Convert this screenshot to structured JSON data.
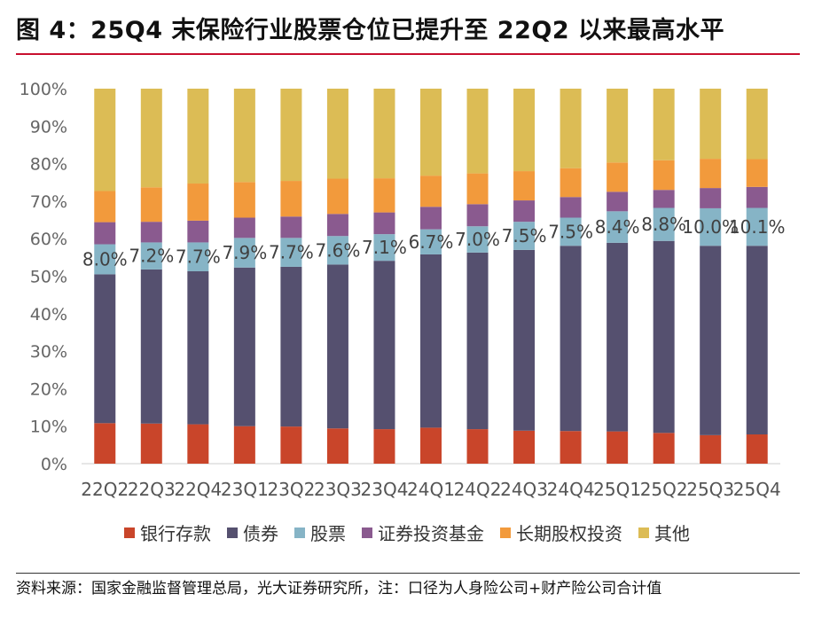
{
  "title": "图 4：25Q4 末保险行业股票仓位已提升至 22Q2 以来最高水平",
  "source": "资料来源：国家金融监督管理总局，光大证券研究所，注：口径为人身险公司+财产险公司合计值",
  "chart_data": {
    "type": "stacked-bar-percent",
    "categories": [
      "22Q2",
      "22Q3",
      "22Q4",
      "23Q1",
      "23Q2",
      "23Q3",
      "23Q4",
      "24Q1",
      "24Q2",
      "24Q3",
      "24Q4",
      "25Q1",
      "25Q2",
      "25Q3",
      "25Q4"
    ],
    "ylim": [
      0,
      100
    ],
    "yticks": [
      "0%",
      "10%",
      "20%",
      "30%",
      "40%",
      "50%",
      "60%",
      "70%",
      "80%",
      "90%",
      "100%"
    ],
    "series": [
      {
        "name": "银行存款",
        "color": "#c9452a",
        "values": [
          10.8,
          10.7,
          10.5,
          10.0,
          9.9,
          9.4,
          9.2,
          9.6,
          9.2,
          8.8,
          8.7,
          8.6,
          8.2,
          7.6,
          7.8
        ]
      },
      {
        "name": "债券",
        "color": "#55506f",
        "values": [
          39.7,
          41.1,
          40.8,
          42.3,
          42.6,
          43.7,
          44.9,
          46.2,
          47.1,
          48.2,
          49.4,
          50.3,
          51.2,
          50.5,
          50.3
        ]
      },
      {
        "name": "股票",
        "color": "#86b4c6",
        "values": [
          8.0,
          7.2,
          7.7,
          7.9,
          7.7,
          7.6,
          7.1,
          6.7,
          7.0,
          7.5,
          7.5,
          8.4,
          8.8,
          10.0,
          10.1
        ]
      },
      {
        "name": "证券投资基金",
        "color": "#8a5a8f",
        "values": [
          5.9,
          5.5,
          5.8,
          5.4,
          5.7,
          5.9,
          5.8,
          6.0,
          5.9,
          5.7,
          5.5,
          5.2,
          4.8,
          5.4,
          5.6
        ]
      },
      {
        "name": "长期股权投资",
        "color": "#f29a3c",
        "values": [
          8.3,
          9.2,
          9.9,
          9.5,
          9.5,
          9.4,
          9.1,
          8.3,
          8.2,
          7.8,
          7.7,
          7.8,
          7.9,
          7.8,
          7.4
        ]
      },
      {
        "name": "其他",
        "color": "#dcbc55",
        "values": [
          27.3,
          26.3,
          25.3,
          24.9,
          24.6,
          24.0,
          23.9,
          23.2,
          22.6,
          22.0,
          21.2,
          19.7,
          19.1,
          18.7,
          18.8
        ]
      }
    ],
    "data_labels": {
      "series": "股票",
      "labels": [
        "8.0%",
        "7.2%",
        "7.7%",
        "7.9%",
        "7.7%",
        "7.6%",
        "7.1%",
        "6.7%",
        "7.0%",
        "7.5%",
        "7.5%",
        "8.4%",
        "8.8%",
        "10.0%",
        "10.1%"
      ]
    }
  }
}
